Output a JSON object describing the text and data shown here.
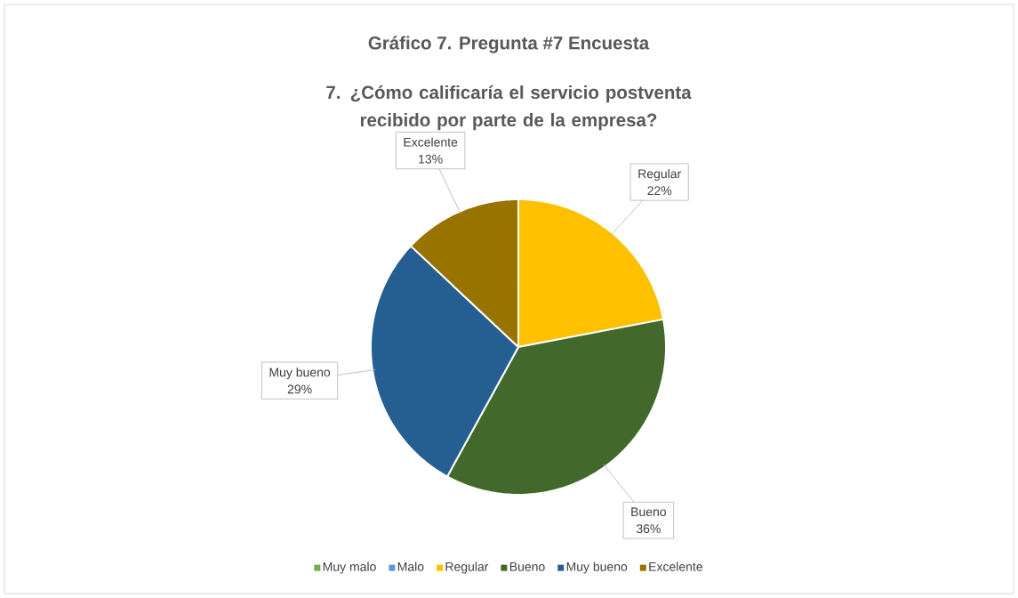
{
  "chart_data": {
    "type": "pie",
    "title": "Gráfico 7. Pregunta #7 Encuesta",
    "subtitle": "7. ¿Cómo calificaría el servicio postventa recibido por parte de la empresa?",
    "categories": [
      "Muy malo",
      "Malo",
      "Regular",
      "Bueno",
      "Muy bueno",
      "Excelente"
    ],
    "values": [
      0,
      0,
      22,
      36,
      29,
      13
    ],
    "colors": [
      "#70ad47",
      "#5b9bd5",
      "#ffc000",
      "#43682b",
      "#255e91",
      "#997300"
    ],
    "value_labels": [
      null,
      null,
      "22%",
      "36%",
      "29%",
      "13%"
    ],
    "legend": "bottom"
  }
}
